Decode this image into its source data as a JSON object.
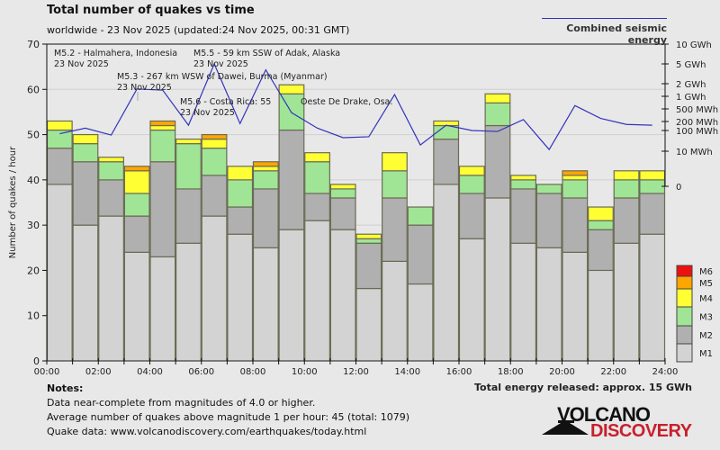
{
  "header": {
    "title": "Total number of quakes vs time",
    "subtitle": "worldwide - 23 Nov 2025 (updated:24 Nov 2025, 00:31 GMT)",
    "energy_legend": "Combined seismic energy"
  },
  "chart_data": {
    "type": "bar",
    "stacked": true,
    "title": "Total number of quakes vs time",
    "ylabel": "Number of quakes / hour",
    "ylim": [
      0,
      70
    ],
    "yticks": [
      0,
      10,
      20,
      30,
      40,
      50,
      60,
      70
    ],
    "xticks": [
      "00:00",
      "02:00",
      "04:00",
      "06:00",
      "08:00",
      "10:00",
      "12:00",
      "14:00",
      "16:00",
      "18:00",
      "20:00",
      "22:00",
      "24:00"
    ],
    "grid": true,
    "legend_position": "bottom-right",
    "categories": [
      "00",
      "01",
      "02",
      "03",
      "04",
      "05",
      "06",
      "07",
      "08",
      "09",
      "10",
      "11",
      "12",
      "13",
      "14",
      "15",
      "16",
      "17",
      "18",
      "19",
      "20",
      "21",
      "22",
      "23"
    ],
    "series": [
      {
        "name": "M1",
        "color": "#d3d3d3",
        "values": [
          39,
          30,
          32,
          24,
          23,
          26,
          32,
          28,
          25,
          29,
          31,
          29,
          16,
          22,
          17,
          39,
          27,
          36,
          26,
          25,
          24,
          20,
          26,
          28
        ]
      },
      {
        "name": "M2",
        "color": "#b0b0b0",
        "values": [
          8,
          14,
          8,
          8,
          21,
          12,
          9,
          6,
          13,
          22,
          6,
          7,
          10,
          14,
          13,
          10,
          10,
          16,
          12,
          12,
          12,
          9,
          10,
          9
        ]
      },
      {
        "name": "M3",
        "color": "#a0e596",
        "values": [
          4,
          4,
          4,
          5,
          7,
          10,
          6,
          6,
          4,
          8,
          7,
          2,
          1,
          6,
          4,
          3,
          4,
          5,
          2,
          2,
          4,
          2,
          4,
          3
        ]
      },
      {
        "name": "M4",
        "color": "#ffff33",
        "values": [
          2,
          2,
          1,
          5,
          1,
          1,
          2,
          3,
          1,
          2,
          2,
          1,
          1,
          4,
          0,
          1,
          2,
          2,
          1,
          0,
          1,
          3,
          2,
          2
        ]
      },
      {
        "name": "M5",
        "color": "#ffa500",
        "values": [
          0,
          0,
          0,
          1,
          1,
          0,
          1,
          0,
          1,
          0,
          0,
          0,
          0,
          0,
          0,
          0,
          0,
          0,
          0,
          0,
          1,
          0,
          0,
          0
        ]
      },
      {
        "name": "M6",
        "color": "#ee1111",
        "values": [
          0,
          0,
          0,
          0,
          0,
          0,
          0,
          0,
          0,
          0,
          0,
          0,
          0,
          0,
          0,
          0,
          0,
          0,
          0,
          0,
          0,
          0,
          0,
          0
        ]
      }
    ],
    "energy_axis": {
      "label": "Combined seismic energy",
      "ticks": [
        "10 GWh",
        "5 GWh",
        "2 GWh",
        "1 GWh",
        "500 MWh",
        "200 MWh",
        "100 MWh",
        "10 MWh",
        "0"
      ],
      "ticks_mwh": [
        10000,
        5000,
        2000,
        1000,
        500,
        200,
        100,
        10,
        0
      ]
    },
    "energy_series_mwh": [
      70,
      120,
      60,
      1500,
      1400,
      150,
      5000,
      170,
      3800,
      380,
      120,
      45,
      50,
      1100,
      20,
      150,
      100,
      90,
      230,
      12,
      600,
      250,
      160,
      150
    ],
    "annotations": [
      {
        "text": "M5.2 - Halmahera, Indonesia",
        "date": "23 Nov 2025",
        "hour": 3
      },
      {
        "text": "M5.5 - 59 km SSW of Adak, Alaska",
        "date": "23 Nov 2025",
        "hour": 8
      },
      {
        "text": "M5.3 - 267 km WSW of Dawei, Burma (Myanmar)",
        "date": "23 Nov 2025",
        "hour": 4
      },
      {
        "text": "M5.6 - Costa Rica: 55 km S of Bahía Drake, Oeste De Drake, Osa.",
        "date": "23 Nov 2025",
        "hour": 6
      }
    ],
    "annotation_texts": [
      "M5.2 - Halmahera, Indonesia",
      "M5.5 - 59 km SSW of Adak, Alaska",
      "M5.3 - 267 km WSW of Dawei, Burma (Myanmar)",
      "M5.6 - Costa Rica: 55",
      "Oeste De Drake, Osa."
    ],
    "annotation_date": "23 Nov 2025"
  },
  "notes": {
    "heading": "Notes:",
    "lines": [
      "Data near-complete from magnitudes of 4.0 or higher.",
      "Average number of quakes above magnitude 1 per hour: 45 (total: 1079)",
      "Quake data: www.volcanodiscovery.com/earthquakes/today.html"
    ]
  },
  "energy_total": "Total energy released: approx. 15 GWh",
  "logo": {
    "line1": "VOLCANO",
    "line2": "DISCOVERY"
  },
  "colors": {
    "background": "#e8e8e8",
    "energy_line": "#3333bb",
    "brand_red": "#c8202c"
  }
}
